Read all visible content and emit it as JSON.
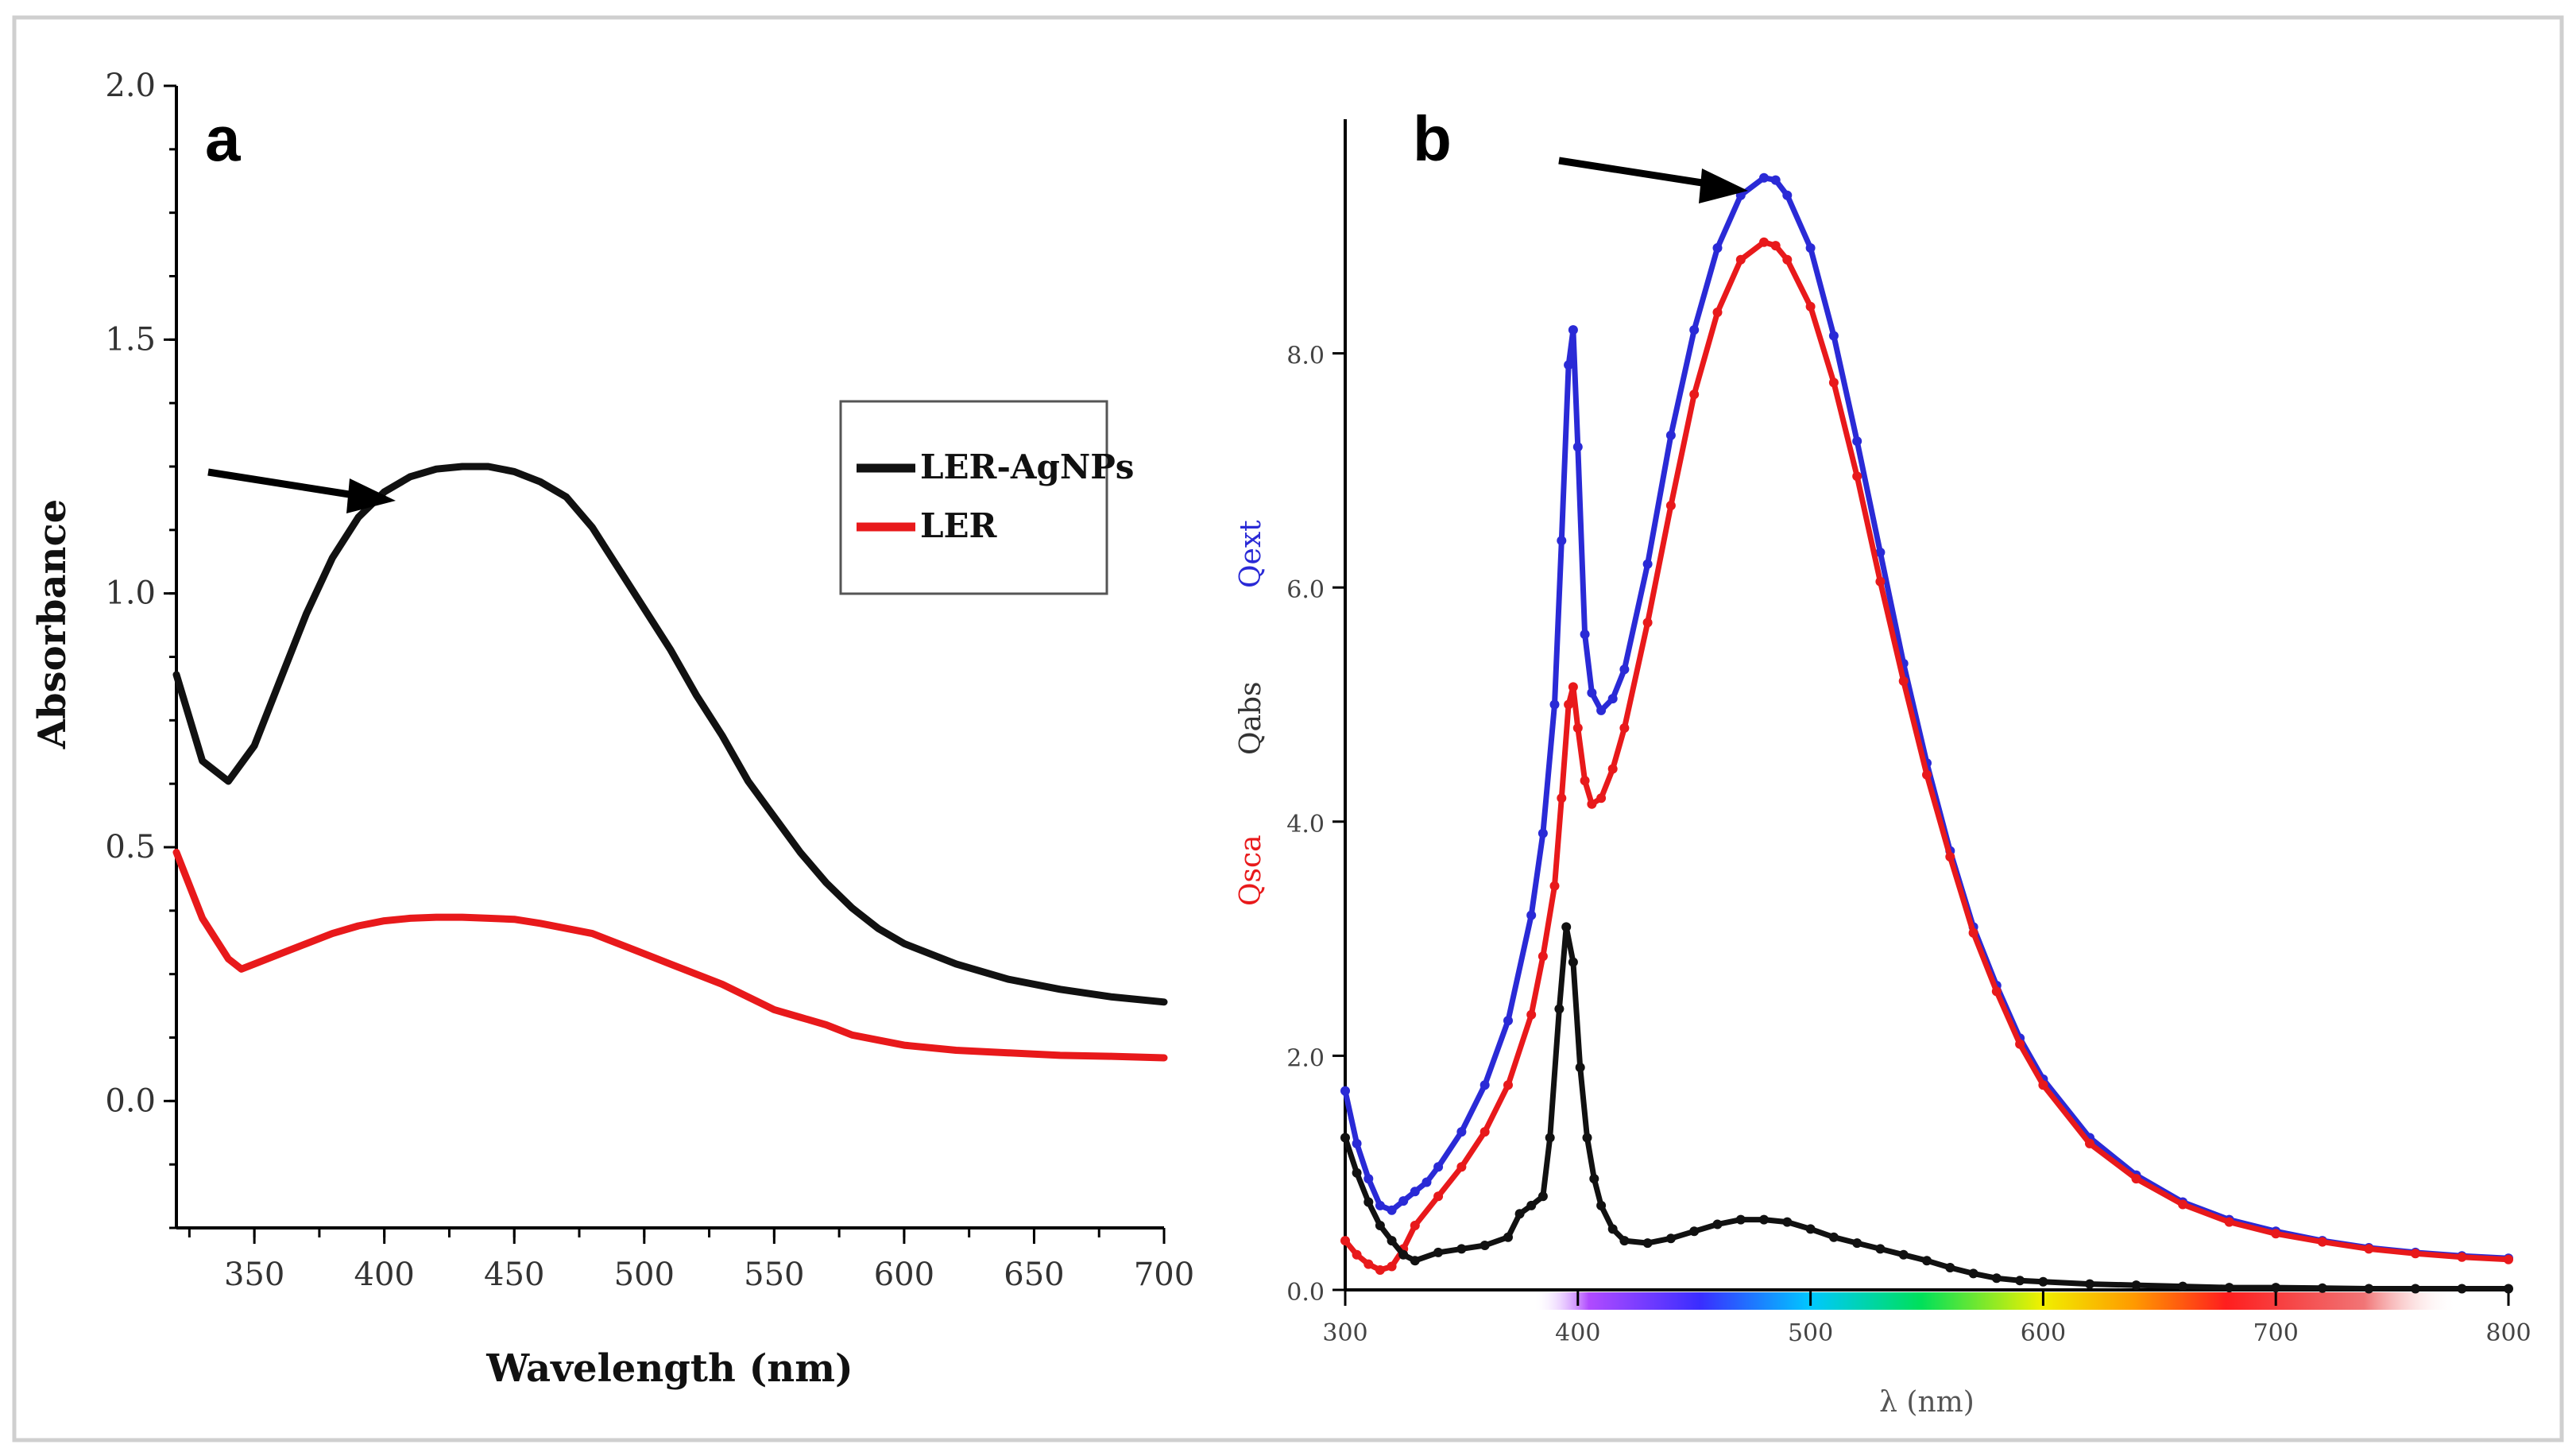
{
  "colors": {
    "black_series": "#111111",
    "red_series": "#e8191b",
    "blue_series": "#2a2ad6",
    "qabs_label": "#333333"
  },
  "chart_data": [
    {
      "panel": "a",
      "type": "line",
      "title": "",
      "xlabel": "Wavelength (nm)",
      "ylabel": "Absorbance",
      "xlim": [
        320,
        700
      ],
      "ylim": [
        -0.25,
        2.0
      ],
      "xticks": [
        "350",
        "400",
        "450",
        "500",
        "550",
        "600",
        "650",
        "700"
      ],
      "yticks": [
        "0.0",
        "0.5",
        "1.0",
        "1.5",
        "2.0"
      ],
      "legend": {
        "placement": "right-middle",
        "entries": [
          "LER-AgNPs",
          "LER"
        ]
      },
      "annotations": [
        "arrow pointing at LER-AgNPs peak near 410 nm"
      ],
      "series": [
        {
          "name": "LER-AgNPs",
          "color": "#111111",
          "x": [
            320,
            330,
            340,
            350,
            360,
            370,
            380,
            390,
            400,
            410,
            420,
            430,
            440,
            450,
            460,
            470,
            480,
            490,
            500,
            510,
            520,
            530,
            540,
            550,
            560,
            570,
            580,
            590,
            600,
            620,
            640,
            660,
            680,
            700
          ],
          "y": [
            0.84,
            0.67,
            0.63,
            0.7,
            0.83,
            0.96,
            1.07,
            1.15,
            1.2,
            1.23,
            1.245,
            1.25,
            1.25,
            1.24,
            1.22,
            1.19,
            1.13,
            1.05,
            0.97,
            0.89,
            0.8,
            0.72,
            0.63,
            0.56,
            0.49,
            0.43,
            0.38,
            0.34,
            0.31,
            0.27,
            0.24,
            0.22,
            0.205,
            0.195
          ]
        },
        {
          "name": "LER",
          "color": "#e8191b",
          "x": [
            320,
            330,
            340,
            345,
            350,
            360,
            370,
            380,
            390,
            400,
            410,
            420,
            430,
            440,
            450,
            460,
            470,
            480,
            490,
            500,
            510,
            520,
            530,
            540,
            550,
            560,
            570,
            580,
            590,
            600,
            620,
            640,
            660,
            680,
            700
          ],
          "y": [
            0.49,
            0.36,
            0.28,
            0.26,
            0.27,
            0.29,
            0.31,
            0.33,
            0.345,
            0.355,
            0.36,
            0.362,
            0.362,
            0.36,
            0.358,
            0.35,
            0.34,
            0.33,
            0.31,
            0.29,
            0.27,
            0.25,
            0.23,
            0.205,
            0.18,
            0.165,
            0.15,
            0.13,
            0.12,
            0.11,
            0.1,
            0.095,
            0.09,
            0.088,
            0.085
          ]
        }
      ]
    },
    {
      "panel": "b",
      "type": "line",
      "title": "",
      "xlabel": "λ (nm)",
      "ylabel_parts": [
        "Qsca",
        "Qabs",
        "Qext"
      ],
      "xlim": [
        300,
        800
      ],
      "ylim": [
        0,
        10
      ],
      "xticks": [
        "300",
        "400",
        "500",
        "600",
        "700",
        "800"
      ],
      "yticks": [
        "0.0",
        "2.0",
        "4.0",
        "6.0",
        "8.0"
      ],
      "annotations": [
        "arrow pointing at Qext peak near 480 nm",
        "visible spectrum color bar 380–790 nm"
      ],
      "series": [
        {
          "name": "Qext",
          "color": "#2a2ad6",
          "x": [
            300,
            305,
            310,
            315,
            320,
            325,
            330,
            335,
            340,
            350,
            360,
            370,
            380,
            385,
            390,
            393,
            396,
            398,
            400,
            403,
            406,
            410,
            415,
            420,
            430,
            440,
            450,
            460,
            470,
            480,
            485,
            490,
            500,
            510,
            520,
            530,
            540,
            550,
            560,
            570,
            580,
            590,
            600,
            620,
            640,
            660,
            680,
            700,
            720,
            740,
            760,
            780,
            800
          ],
          "y": [
            1.7,
            1.25,
            0.95,
            0.72,
            0.68,
            0.76,
            0.84,
            0.92,
            1.05,
            1.35,
            1.75,
            2.3,
            3.2,
            3.9,
            5.0,
            6.4,
            7.9,
            8.2,
            7.2,
            5.6,
            5.1,
            4.95,
            5.05,
            5.3,
            6.2,
            7.3,
            8.2,
            8.9,
            9.35,
            9.5,
            9.48,
            9.35,
            8.9,
            8.15,
            7.25,
            6.3,
            5.35,
            4.5,
            3.75,
            3.1,
            2.6,
            2.15,
            1.8,
            1.3,
            0.98,
            0.75,
            0.6,
            0.5,
            0.42,
            0.36,
            0.32,
            0.29,
            0.27
          ]
        },
        {
          "name": "Qsca",
          "color": "#e8191b",
          "x": [
            300,
            305,
            310,
            315,
            320,
            325,
            330,
            340,
            350,
            360,
            370,
            380,
            385,
            390,
            393,
            396,
            398,
            400,
            403,
            406,
            410,
            415,
            420,
            430,
            440,
            450,
            460,
            470,
            480,
            485,
            490,
            500,
            510,
            520,
            530,
            540,
            550,
            560,
            570,
            580,
            590,
            600,
            620,
            640,
            660,
            680,
            700,
            720,
            740,
            760,
            780,
            800
          ],
          "y": [
            0.42,
            0.3,
            0.22,
            0.17,
            0.2,
            0.35,
            0.55,
            0.8,
            1.05,
            1.35,
            1.75,
            2.35,
            2.85,
            3.45,
            4.2,
            5.0,
            5.15,
            4.8,
            4.35,
            4.15,
            4.2,
            4.45,
            4.8,
            5.7,
            6.7,
            7.65,
            8.35,
            8.8,
            8.95,
            8.92,
            8.8,
            8.4,
            7.75,
            6.95,
            6.05,
            5.2,
            4.4,
            3.7,
            3.05,
            2.55,
            2.1,
            1.75,
            1.25,
            0.95,
            0.73,
            0.58,
            0.48,
            0.41,
            0.35,
            0.31,
            0.28,
            0.26
          ]
        },
        {
          "name": "Qabs",
          "color": "#111111",
          "x": [
            300,
            305,
            310,
            315,
            320,
            325,
            330,
            340,
            350,
            360,
            370,
            375,
            380,
            385,
            388,
            392,
            395,
            398,
            401,
            404,
            407,
            410,
            415,
            420,
            430,
            440,
            450,
            460,
            470,
            480,
            490,
            500,
            510,
            520,
            530,
            540,
            550,
            560,
            570,
            580,
            590,
            600,
            620,
            640,
            660,
            680,
            700,
            720,
            740,
            760,
            780,
            800
          ],
          "y": [
            1.3,
            1.0,
            0.75,
            0.55,
            0.42,
            0.3,
            0.25,
            0.32,
            0.35,
            0.38,
            0.45,
            0.65,
            0.72,
            0.8,
            1.3,
            2.4,
            3.1,
            2.8,
            1.9,
            1.3,
            0.95,
            0.72,
            0.52,
            0.42,
            0.4,
            0.44,
            0.5,
            0.56,
            0.6,
            0.6,
            0.58,
            0.52,
            0.45,
            0.4,
            0.35,
            0.3,
            0.25,
            0.19,
            0.14,
            0.1,
            0.08,
            0.07,
            0.05,
            0.04,
            0.03,
            0.02,
            0.02,
            0.015,
            0.01,
            0.01,
            0.01,
            0.01
          ]
        }
      ]
    }
  ]
}
